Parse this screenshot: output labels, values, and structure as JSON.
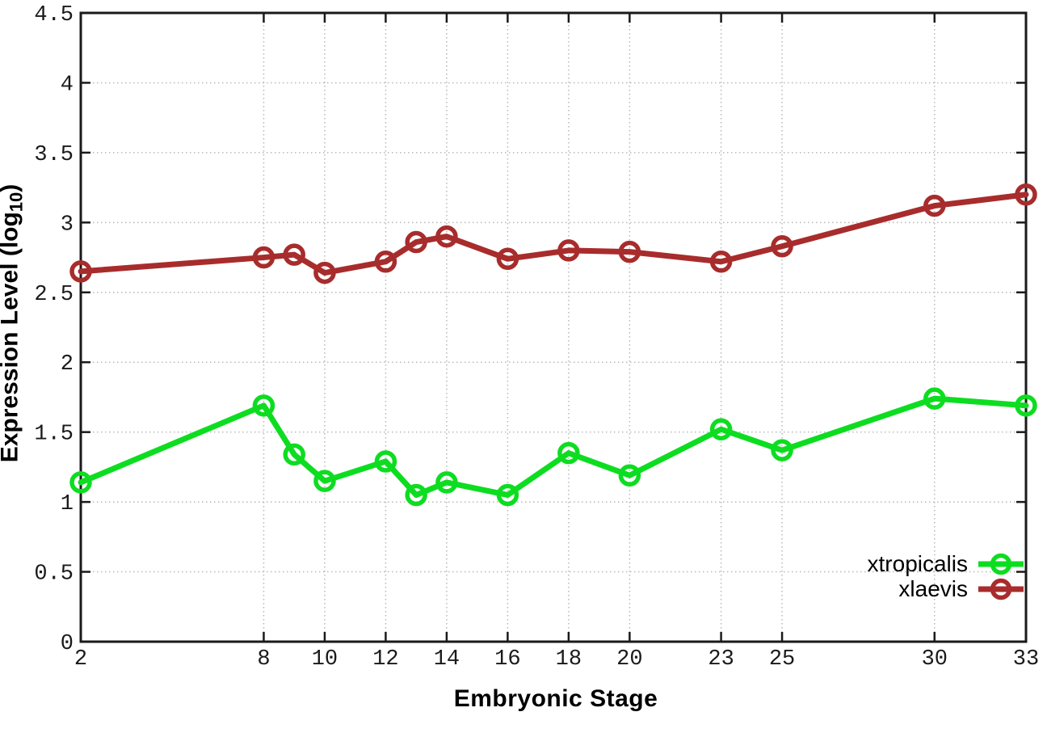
{
  "figure": {
    "xlabel": "Embryonic Stage",
    "ylabel_prefix": "Expression Level (log",
    "ylabel_sub": "10",
    "ylabel_suffix": ")"
  },
  "legend": {
    "items": [
      {
        "label": "xtropicalis",
        "color": "#0ddd20"
      },
      {
        "label": "xlaevis",
        "color": "#a82c2c"
      }
    ]
  },
  "colors": {
    "border": "#1a1a1a",
    "grid": "#b8b8b8",
    "tick_text": "#1a1a1a"
  },
  "chart_data": {
    "type": "line",
    "title": "",
    "xlabel": "Embryonic Stage",
    "ylabel": "Expression Level (log10)",
    "xlim": [
      2,
      33
    ],
    "ylim": [
      0,
      4.5
    ],
    "x_ticks": [
      2,
      8,
      10,
      12,
      14,
      16,
      18,
      20,
      23,
      25,
      30,
      33
    ],
    "y_ticks": [
      0,
      0.5,
      1,
      1.5,
      2,
      2.5,
      3,
      3.5,
      4,
      4.5
    ],
    "grid": true,
    "legend_position": "inside-bottom-right",
    "marker": "open-circle",
    "x": [
      2,
      8,
      9,
      10,
      12,
      13,
      14,
      16,
      18,
      20,
      23,
      25,
      30,
      33
    ],
    "series": [
      {
        "name": "xtropicalis",
        "color": "#0ddd20",
        "values": [
          1.14,
          1.69,
          1.34,
          1.15,
          1.29,
          1.05,
          1.14,
          1.05,
          1.35,
          1.19,
          1.52,
          1.37,
          1.74,
          1.69
        ]
      },
      {
        "name": "xlaevis",
        "color": "#a82c2c",
        "values": [
          2.65,
          2.75,
          2.77,
          2.64,
          2.72,
          2.86,
          2.9,
          2.74,
          2.8,
          2.79,
          2.72,
          2.83,
          3.12,
          3.2
        ]
      }
    ]
  }
}
